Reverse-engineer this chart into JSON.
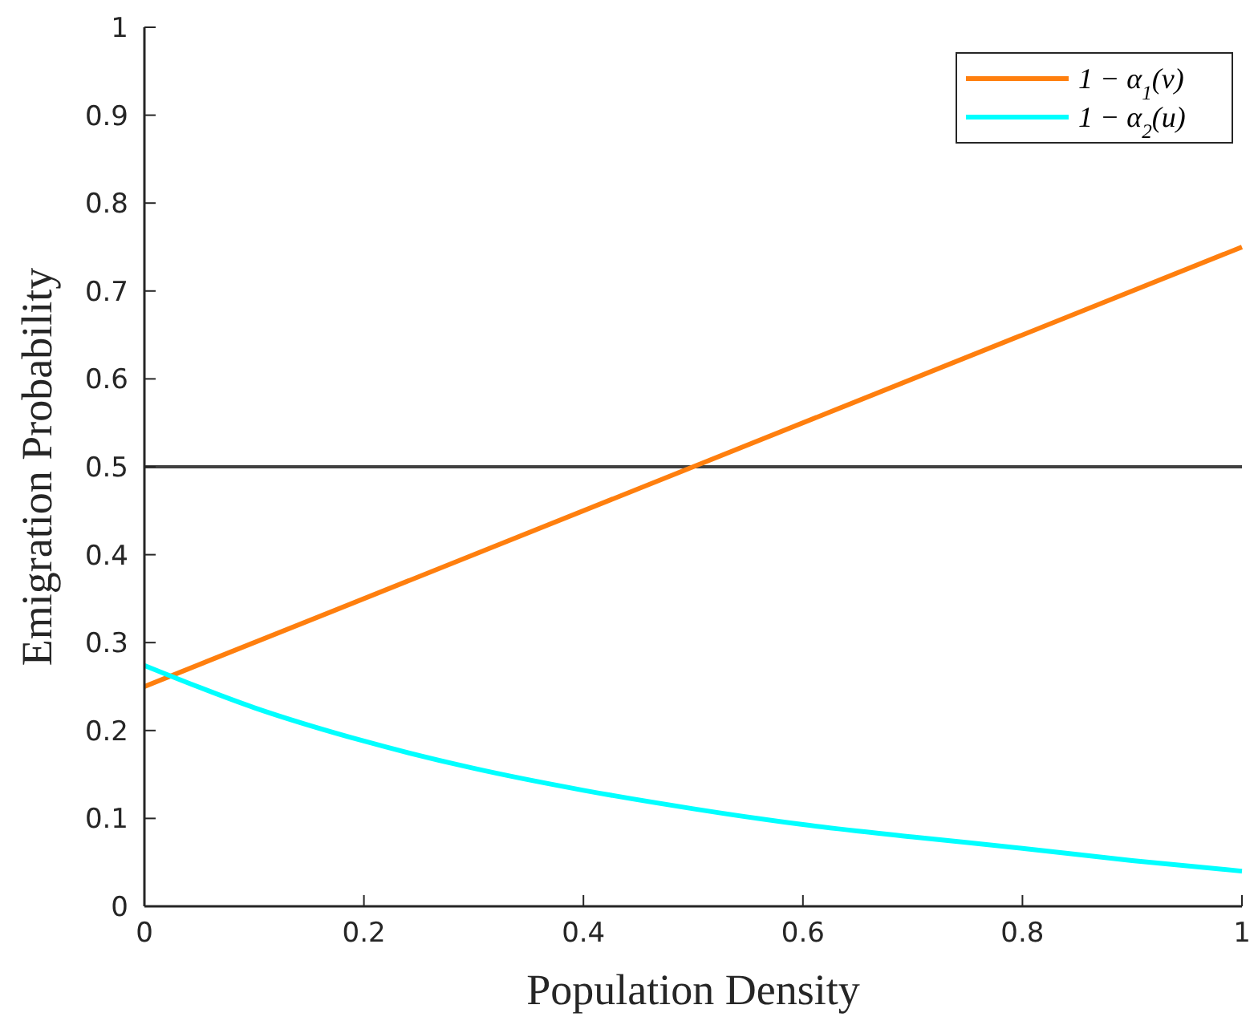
{
  "chart_data": {
    "type": "line",
    "xlabel": "Population Density",
    "ylabel": "Emigration Probability",
    "xlim": [
      0,
      1
    ],
    "ylim": [
      0,
      1
    ],
    "xticks": [
      0,
      0.2,
      0.4,
      0.6,
      0.8,
      1
    ],
    "yticks": [
      0,
      0.1,
      0.2,
      0.3,
      0.4,
      0.5,
      0.6,
      0.7,
      0.8,
      0.9,
      1
    ],
    "grid": false,
    "legend": "top right",
    "marker": "none",
    "line_style": "solid",
    "ref_lines": [
      {
        "axis": "y",
        "value": 0.5,
        "color": "#404040"
      }
    ],
    "series": [
      {
        "name": "1 − α$_{1}$(v)",
        "color": "#ff7f0e",
        "x": [
          0,
          1
        ],
        "values": [
          0.25,
          0.75
        ]
      },
      {
        "name": "1 − α$_{2}$(u)",
        "color": "#00ffff",
        "x": [
          0,
          0.1,
          0.2,
          0.3,
          0.4,
          0.5,
          0.6,
          0.7,
          0.8,
          0.9,
          1
        ],
        "values": [
          0.274,
          0.226,
          0.188,
          0.157,
          0.132,
          0.111,
          0.093,
          0.079,
          0.066,
          0.052,
          0.04
        ]
      }
    ]
  }
}
